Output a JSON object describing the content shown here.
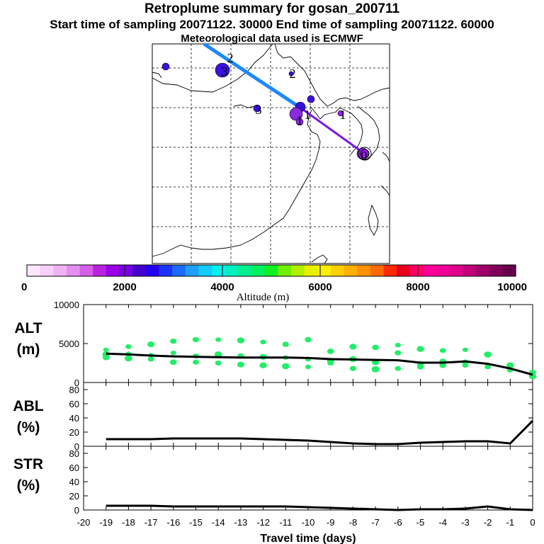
{
  "header": {
    "title": "Retroplume summary for gosan_200711",
    "subtitle": "Start time of sampling 20071122. 30000     End time of sampling 20071122. 60000",
    "met": "Meteorological data used is ECMWF"
  },
  "colorbar": {
    "ticks": [
      "0",
      "2000",
      "4000",
      "6000",
      "8000",
      "10000"
    ],
    "label": "Altitude (m)",
    "colors": [
      "#fde7ff",
      "#f7cff9",
      "#efb3f5",
      "#e38ff0",
      "#d45fe8",
      "#bb22e0",
      "#9900e6",
      "#7a00e6",
      "#4400cc",
      "#2200ee",
      "#1a33ff",
      "#1e6aff",
      "#1e9fff",
      "#13ccff",
      "#00f0f0",
      "#00f0c0",
      "#00f090",
      "#00f060",
      "#10f020",
      "#70f000",
      "#b0f000",
      "#e8f000",
      "#ffee00",
      "#ffd000",
      "#ffb000",
      "#ff9000",
      "#ff6a00",
      "#ff2a00",
      "#e8001e",
      "#ff0066",
      "#ff0099",
      "#f00099",
      "#e0008a",
      "#c0007a",
      "#a0006a",
      "#80005a",
      "#66004d"
    ]
  },
  "map": {
    "trajectory_label_numbers": [
      "2",
      "2",
      "1",
      "1",
      "0",
      "3",
      "3",
      "1"
    ],
    "segment_colors": [
      "#1e88ff",
      "#7a1ae0"
    ],
    "cluster_colors": [
      "#3a10e0",
      "#8a2be2",
      "#a020f0"
    ]
  },
  "chart_data": [
    {
      "type": "scatter+line",
      "title": "ALT (m)",
      "ylabel": "ALT\n(m)",
      "ylabel_lines": [
        "ALT",
        "(m)"
      ],
      "ylim": [
        0,
        10000
      ],
      "ytick_labels": [
        "10000",
        "5000",
        "0"
      ],
      "xlim": [
        -20,
        0
      ],
      "line": {
        "x": [
          -19,
          -18,
          -17,
          -16,
          -15,
          -14,
          -13,
          -12,
          -11,
          -10,
          -9,
          -8,
          -7,
          -6,
          -5,
          -4,
          -3,
          -2,
          -1,
          0
        ],
        "y": [
          3700,
          3600,
          3450,
          3350,
          3300,
          3250,
          3200,
          3200,
          3200,
          3150,
          3000,
          2950,
          2900,
          2850,
          2550,
          2550,
          2700,
          2400,
          1800,
          1000
        ]
      },
      "point_color": "#22ee66",
      "points": [
        {
          "x": -19,
          "y": 4200
        },
        {
          "x": -19,
          "y": 3600
        },
        {
          "x": -19,
          "y": 3200
        },
        {
          "x": -18,
          "y": 4600
        },
        {
          "x": -18,
          "y": 3700
        },
        {
          "x": -18,
          "y": 3100
        },
        {
          "x": -17,
          "y": 4900
        },
        {
          "x": -17,
          "y": 3500
        },
        {
          "x": -17,
          "y": 3000
        },
        {
          "x": -16,
          "y": 5300
        },
        {
          "x": -16,
          "y": 3800
        },
        {
          "x": -16,
          "y": 2600
        },
        {
          "x": -15,
          "y": 5500
        },
        {
          "x": -15,
          "y": 3400
        },
        {
          "x": -15,
          "y": 2600
        },
        {
          "x": -14,
          "y": 5500
        },
        {
          "x": -14,
          "y": 3600
        },
        {
          "x": -14,
          "y": 2500
        },
        {
          "x": -13,
          "y": 5400
        },
        {
          "x": -13,
          "y": 3400
        },
        {
          "x": -13,
          "y": 2300
        },
        {
          "x": -12,
          "y": 5200
        },
        {
          "x": -12,
          "y": 3300
        },
        {
          "x": -12,
          "y": 2200
        },
        {
          "x": -11,
          "y": 4900
        },
        {
          "x": -11,
          "y": 3200
        },
        {
          "x": -11,
          "y": 2100
        },
        {
          "x": -10,
          "y": 5500
        },
        {
          "x": -10,
          "y": 3000
        },
        {
          "x": -10,
          "y": 2000
        },
        {
          "x": -9,
          "y": 4000
        },
        {
          "x": -9,
          "y": 2800
        },
        {
          "x": -9,
          "y": 2500
        },
        {
          "x": -8,
          "y": 4600
        },
        {
          "x": -8,
          "y": 3000
        },
        {
          "x": -8,
          "y": 1800
        },
        {
          "x": -7,
          "y": 4500
        },
        {
          "x": -7,
          "y": 2600
        },
        {
          "x": -7,
          "y": 1700
        },
        {
          "x": -6,
          "y": 4800
        },
        {
          "x": -6,
          "y": 3800
        },
        {
          "x": -6,
          "y": 1800
        },
        {
          "x": -5,
          "y": 4300
        },
        {
          "x": -5,
          "y": 2400
        },
        {
          "x": -5,
          "y": 2000
        },
        {
          "x": -4,
          "y": 4100
        },
        {
          "x": -4,
          "y": 2700
        },
        {
          "x": -4,
          "y": 2200
        },
        {
          "x": -3,
          "y": 4200
        },
        {
          "x": -3,
          "y": 2600
        },
        {
          "x": -3,
          "y": 2200
        },
        {
          "x": -2,
          "y": 3600
        },
        {
          "x": -2,
          "y": 2100
        },
        {
          "x": -2,
          "y": 2000
        },
        {
          "x": -1,
          "y": 2200
        },
        {
          "x": -1,
          "y": 1600
        },
        {
          "x": 0,
          "y": 1300
        },
        {
          "x": 0,
          "y": 800
        }
      ]
    },
    {
      "type": "line",
      "title": "ABL (%)",
      "ylabel": "ABL\n(%)",
      "ylabel_lines": [
        "ABL",
        "(%)"
      ],
      "ylim": [
        0,
        90
      ],
      "ytick_labels": [
        "80",
        "60",
        "40",
        "20",
        "0"
      ],
      "xlim": [
        -20,
        0
      ],
      "x": [
        -19,
        -18,
        -17,
        -16,
        -15,
        -14,
        -13,
        -12,
        -11,
        -10,
        -9,
        -8,
        -7,
        -6,
        -5,
        -4,
        -3,
        -2,
        -1,
        0
      ],
      "y": [
        10,
        10,
        10,
        11,
        11,
        11,
        11,
        10,
        9,
        8,
        6,
        4,
        3,
        3,
        5,
        6,
        7,
        7,
        4,
        36
      ]
    },
    {
      "type": "line",
      "title": "STR (%)",
      "ylabel": "STR\n(%)",
      "ylabel_lines": [
        "STR",
        "(%)"
      ],
      "ylim": [
        0,
        90
      ],
      "ytick_labels": [
        "80",
        "60",
        "40",
        "20",
        "0"
      ],
      "xlim": [
        -20,
        0
      ],
      "x": [
        -19,
        -18,
        -17,
        -16,
        -15,
        -14,
        -13,
        -12,
        -11,
        -10,
        -9,
        -8,
        -7,
        -6,
        -5,
        -4,
        -3,
        -2,
        -1,
        0
      ],
      "y": [
        6,
        6,
        6,
        5,
        5,
        5,
        5,
        5,
        5,
        4,
        3,
        2,
        1,
        0,
        1,
        1,
        2,
        5,
        1,
        0
      ],
      "xlabel": "Travel time (days)",
      "xtick_labels": [
        "-20",
        "-19",
        "-18",
        "-17",
        "-16",
        "-15",
        "-14",
        "-13",
        "-12",
        "-11",
        "-10",
        "-9",
        "-8",
        "-7",
        "-6",
        "-5",
        "-4",
        "-3",
        "-2",
        "-1",
        "0"
      ]
    }
  ]
}
